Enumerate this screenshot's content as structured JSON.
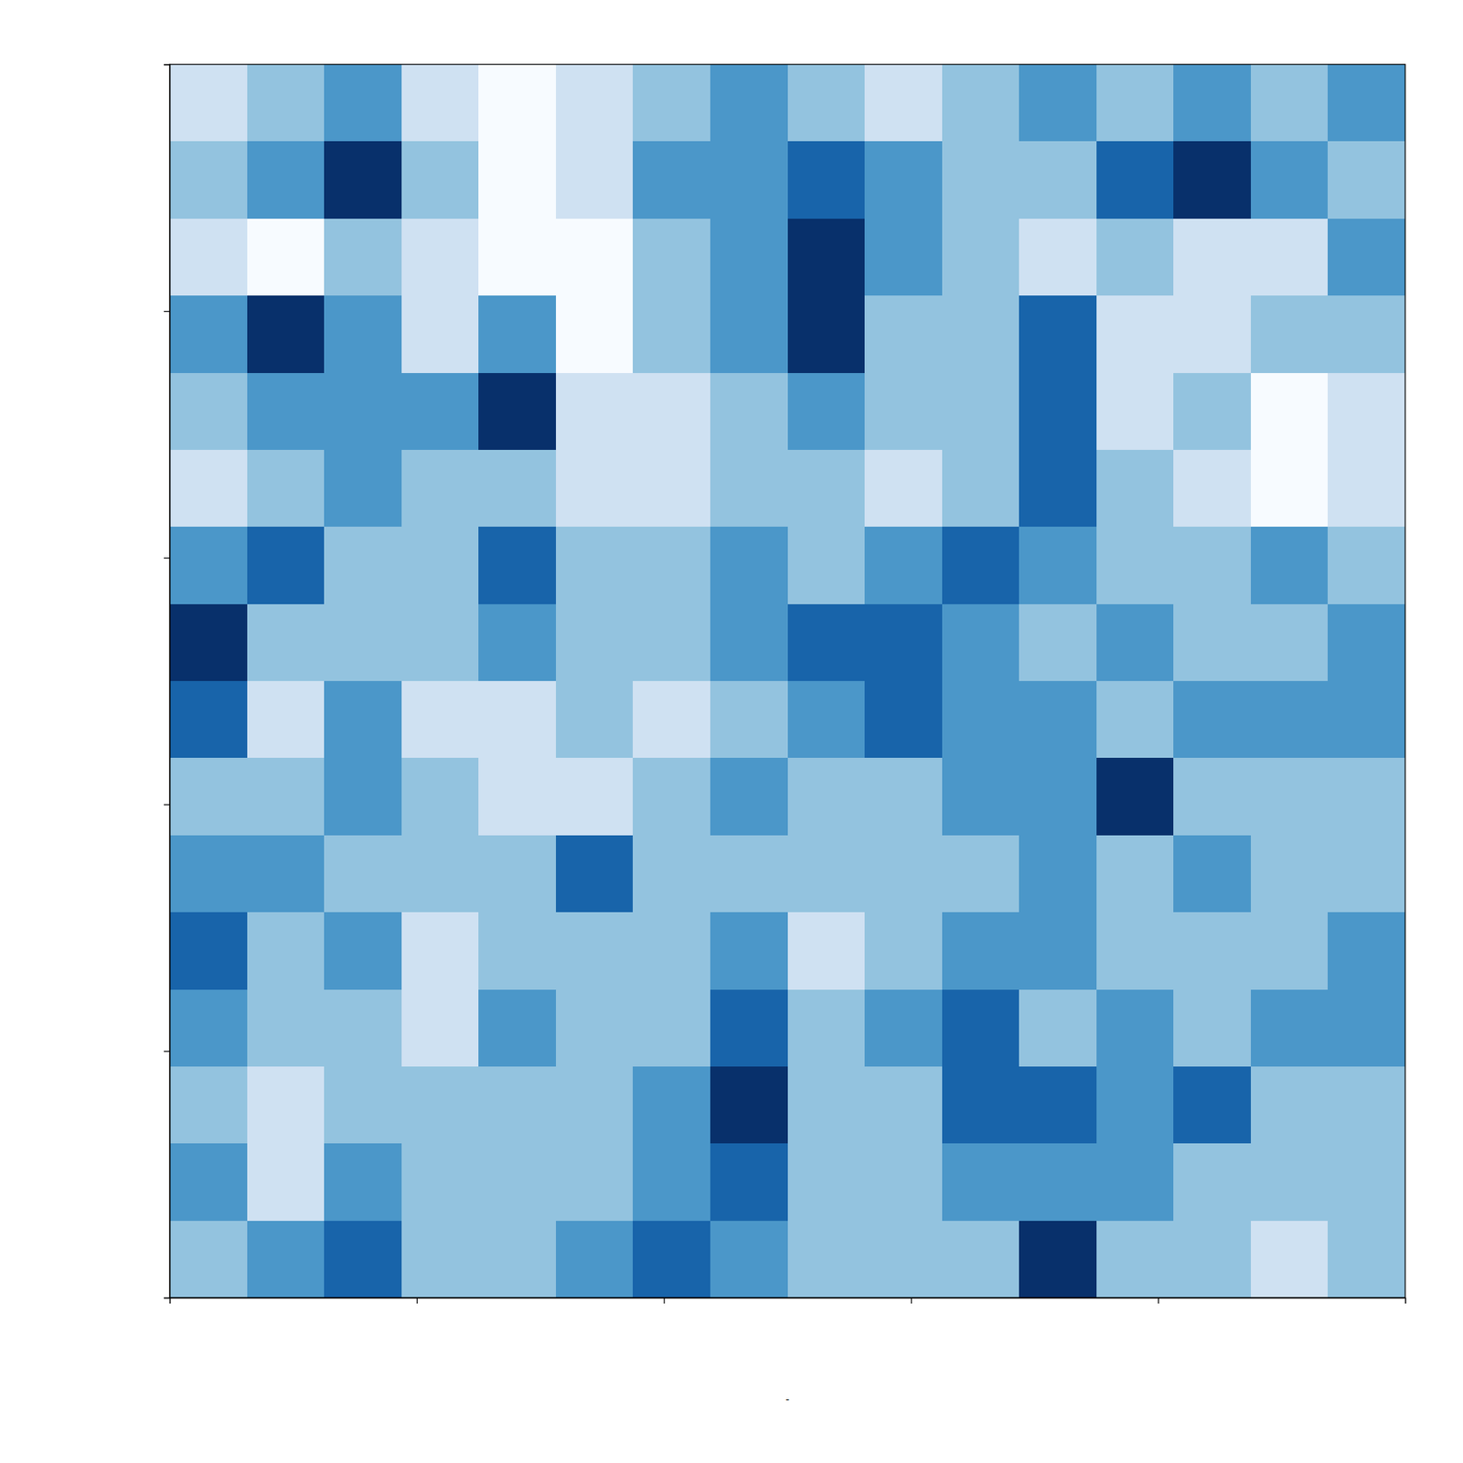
{
  "chart_data": {
    "type": "heatmap",
    "xlabel": "-",
    "xlim": [
      0,
      5
    ],
    "ylim": [
      0,
      5
    ],
    "xticks": [
      0,
      1,
      2,
      3,
      4,
      5
    ],
    "yticks": [
      0,
      1,
      2,
      3,
      4,
      5
    ],
    "tick_labels": false,
    "color": "Blues",
    "cells": [
      [
        3,
        4,
        5,
        3,
        2,
        3,
        4,
        5,
        4,
        3,
        4,
        5,
        4,
        5,
        4,
        5
      ],
      [
        4,
        5,
        7,
        4,
        2,
        3,
        5,
        5,
        6,
        5,
        4,
        4,
        6,
        7,
        5,
        4
      ],
      [
        3,
        2,
        4,
        3,
        2,
        2,
        4,
        5,
        7,
        5,
        4,
        3,
        4,
        3,
        3,
        5
      ],
      [
        5,
        7,
        5,
        3,
        5,
        2,
        4,
        5,
        7,
        4,
        4,
        6,
        3,
        3,
        4,
        4
      ],
      [
        4,
        5,
        5,
        5,
        7,
        3,
        3,
        4,
        5,
        4,
        4,
        6,
        3,
        4,
        2,
        3
      ],
      [
        3,
        4,
        5,
        4,
        4,
        3,
        3,
        4,
        4,
        3,
        4,
        6,
        4,
        3,
        2,
        3
      ],
      [
        5,
        6,
        4,
        4,
        6,
        4,
        4,
        5,
        4,
        5,
        6,
        5,
        4,
        4,
        5,
        4
      ],
      [
        7,
        4,
        4,
        4,
        5,
        4,
        4,
        5,
        6,
        6,
        5,
        4,
        5,
        4,
        4,
        5
      ],
      [
        6,
        3,
        5,
        3,
        3,
        4,
        3,
        4,
        5,
        6,
        5,
        5,
        4,
        5,
        5,
        5
      ],
      [
        4,
        4,
        5,
        4,
        3,
        3,
        4,
        5,
        4,
        4,
        5,
        5,
        7,
        4,
        4,
        4
      ],
      [
        5,
        5,
        4,
        4,
        4,
        6,
        4,
        4,
        4,
        4,
        4,
        5,
        4,
        5,
        4,
        4
      ],
      [
        6,
        4,
        5,
        3,
        4,
        4,
        4,
        5,
        3,
        4,
        5,
        5,
        4,
        4,
        4,
        5
      ],
      [
        5,
        4,
        4,
        3,
        5,
        4,
        4,
        6,
        4,
        5,
        6,
        4,
        5,
        4,
        5,
        5
      ],
      [
        4,
        3,
        4,
        4,
        4,
        4,
        5,
        7,
        4,
        4,
        6,
        6,
        5,
        6,
        4,
        4
      ],
      [
        5,
        3,
        5,
        4,
        4,
        4,
        5,
        6,
        4,
        4,
        5,
        5,
        5,
        4,
        4,
        4
      ],
      [
        4,
        5,
        6,
        4,
        4,
        5,
        6,
        5,
        4,
        4,
        4,
        7,
        4,
        4,
        3,
        4
      ]
    ]
  }
}
